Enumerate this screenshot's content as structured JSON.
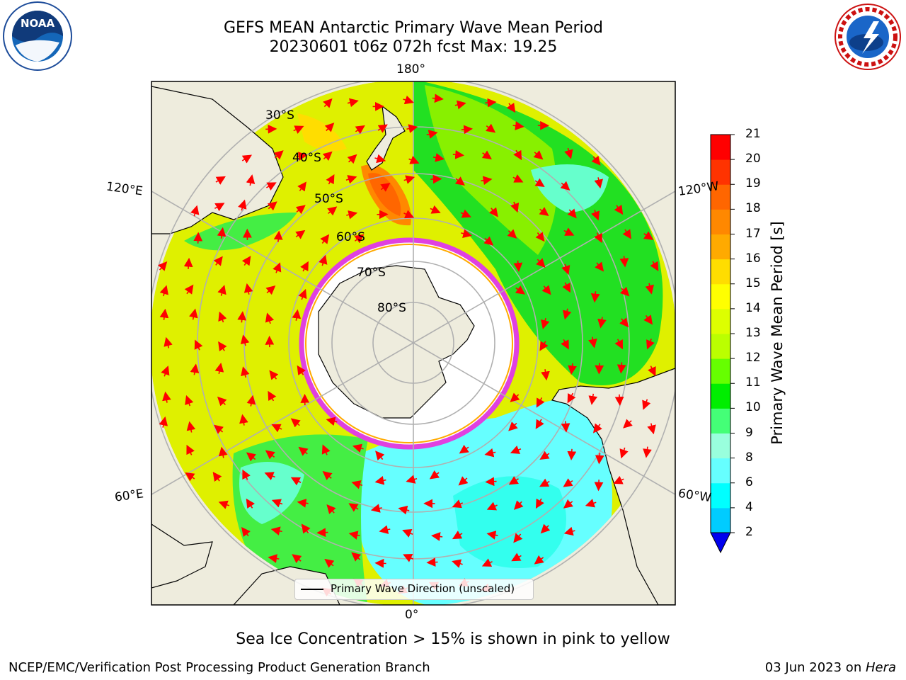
{
  "title": {
    "line1": "GEFS MEAN Antarctic Primary Wave Mean Period",
    "line2": "20230601 t06z 072h fcst   Max: 19.25"
  },
  "map": {
    "projection": "south polar stereographic",
    "meridian_labels": {
      "top": "180°",
      "upper_left": "120°E",
      "upper_right": "120°W",
      "lower_left": "60°E",
      "lower_right": "60°W",
      "bottom": "0°"
    },
    "latitude_labels": [
      "30°S",
      "40°S",
      "50°S",
      "60°S",
      "70°S",
      "80°S"
    ],
    "legend_label": "Primary Wave Direction (unscaled)",
    "colors": {
      "land": "#eeecdd",
      "ice_edge": "#e040e0",
      "ocean_high": "#dff000",
      "ocean_mid": "#22e022",
      "ocean_low": "#66ffff"
    }
  },
  "colorbar": {
    "label": "Primary Wave Mean Period [s]",
    "ticks": [
      "21",
      "20",
      "19",
      "18",
      "17",
      "16",
      "15",
      "14",
      "13",
      "12",
      "11",
      "10",
      "9",
      "8",
      "6",
      "4",
      "2"
    ],
    "colors": [
      "#ff0000",
      "#ff3300",
      "#ff6600",
      "#ff8800",
      "#ffaa00",
      "#ffdd00",
      "#ffff00",
      "#ddff00",
      "#bbff00",
      "#66ff00",
      "#00ee00",
      "#44ff77",
      "#99ffdd",
      "#66ffff",
      "#00ffff",
      "#00ccff",
      "#0066ff"
    ],
    "extend_color": "#0000ee"
  },
  "footnote": "Sea Ice Concentration > 15% is shown in pink to yellow",
  "credit": "NCEP/EMC/Verification Post Processing Product Generation Branch",
  "date": {
    "text": "03 Jun 2023 on ",
    "system": "Hera"
  },
  "logos": {
    "noaa": "NOAA",
    "nws_text": "NATIONAL WEATHER SERVICE"
  }
}
